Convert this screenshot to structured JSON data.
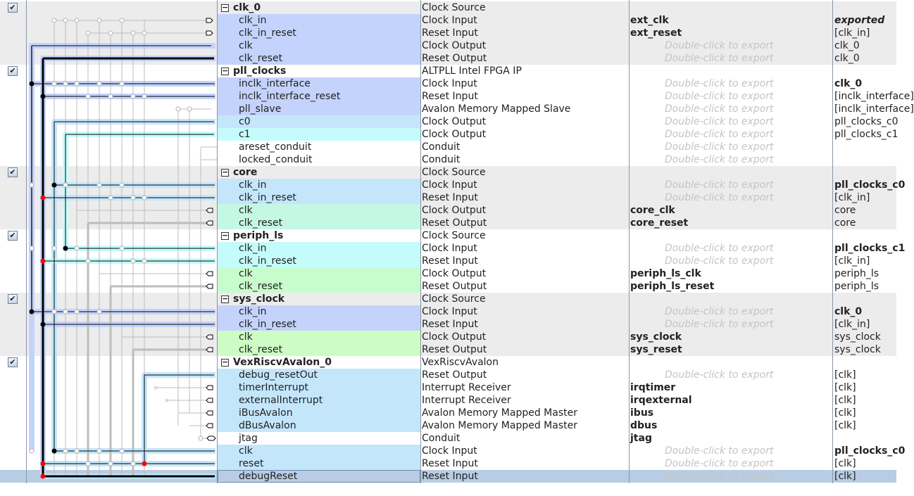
{
  "export_hint": "Double-click to export",
  "colors": {
    "blue": "#c4d3fc",
    "lightblue": "#c3e6fb",
    "cyan": "#c4fcfc",
    "mint": "#c4f8e4",
    "green": "#c8fccc",
    "lime": "#cdfcc4",
    "selected": "#b8cce4",
    "header_gray": "#ececec"
  },
  "rows": [
    {
      "name": "clk_0",
      "desc": "Clock Source",
      "header": true,
      "gray": true,
      "checked": true
    },
    {
      "name": "clk_in",
      "desc": "Clock Input",
      "export": "ext_clk",
      "export_bold": true,
      "clock": "exported",
      "clock_style": "bi",
      "bg": "blue",
      "gray": true
    },
    {
      "name": "clk_in_reset",
      "desc": "Reset Input",
      "export": "ext_reset",
      "export_bold": true,
      "clock": "[clk_in]",
      "bg": "blue",
      "gray": true
    },
    {
      "name": "clk",
      "desc": "Clock Output",
      "dbl": true,
      "clock": "clk_0",
      "bg": "blue",
      "gray": true
    },
    {
      "name": "clk_reset",
      "desc": "Reset Output",
      "dbl": true,
      "clock": "clk_0",
      "bg": "blue",
      "gray": true
    },
    {
      "name": "pll_clocks",
      "desc": "ALTPLL Intel FPGA IP",
      "header": true,
      "checked": true
    },
    {
      "name": "inclk_interface",
      "desc": "Clock Input",
      "dbl": true,
      "clock": "clk_0",
      "clock_style": "bold",
      "bg": "blue"
    },
    {
      "name": "inclk_interface_reset",
      "desc": "Reset Input",
      "dbl": true,
      "clock": "[inclk_interface]",
      "bg": "blue"
    },
    {
      "name": "pll_slave",
      "desc": "Avalon Memory Mapped Slave",
      "dbl": true,
      "clock": "[inclk_interface]",
      "bg": "blue"
    },
    {
      "name": "c0",
      "desc": "Clock Output",
      "dbl": true,
      "clock": "pll_clocks_c0",
      "bg": "lightblue"
    },
    {
      "name": "c1",
      "desc": "Clock Output",
      "dbl": true,
      "clock": "pll_clocks_c1",
      "bg": "cyan"
    },
    {
      "name": "areset_conduit",
      "desc": "Conduit",
      "dbl": true
    },
    {
      "name": "locked_conduit",
      "desc": "Conduit",
      "dbl": true
    },
    {
      "name": "core",
      "desc": "Clock Source",
      "header": true,
      "gray": true,
      "checked": true
    },
    {
      "name": "clk_in",
      "desc": "Clock Input",
      "dbl": true,
      "clock": "pll_clocks_c0",
      "clock_style": "bold",
      "bg": "lightblue",
      "gray": true
    },
    {
      "name": "clk_in_reset",
      "desc": "Reset Input",
      "dbl": true,
      "clock": "[clk_in]",
      "bg": "lightblue",
      "gray": true
    },
    {
      "name": "clk",
      "desc": "Clock Output",
      "export": "core_clk",
      "export_bold": true,
      "clock": "core",
      "bg": "mint",
      "gray": true
    },
    {
      "name": "clk_reset",
      "desc": "Reset Output",
      "export": "core_reset",
      "export_bold": true,
      "clock": "core",
      "bg": "mint",
      "gray": true
    },
    {
      "name": "periph_ls",
      "desc": "Clock Source",
      "header": true,
      "checked": true
    },
    {
      "name": "clk_in",
      "desc": "Clock Input",
      "dbl": true,
      "clock": "pll_clocks_c1",
      "clock_style": "bold",
      "bg": "cyan"
    },
    {
      "name": "clk_in_reset",
      "desc": "Reset Input",
      "dbl": true,
      "clock": "[clk_in]",
      "bg": "cyan"
    },
    {
      "name": "clk",
      "desc": "Clock Output",
      "export": "periph_ls_clk",
      "export_bold": true,
      "clock": "periph_ls",
      "bg": "green"
    },
    {
      "name": "clk_reset",
      "desc": "Reset Output",
      "export": "periph_ls_reset",
      "export_bold": true,
      "clock": "periph_ls",
      "bg": "green"
    },
    {
      "name": "sys_clock",
      "desc": "Clock Source",
      "header": true,
      "gray": true,
      "checked": true
    },
    {
      "name": "clk_in",
      "desc": "Clock Input",
      "dbl": true,
      "clock": "clk_0",
      "clock_style": "bold",
      "bg": "blue",
      "gray": true
    },
    {
      "name": "clk_in_reset",
      "desc": "Reset Input",
      "dbl": true,
      "clock": "[clk_in]",
      "bg": "blue",
      "gray": true
    },
    {
      "name": "clk",
      "desc": "Clock Output",
      "export": "sys_clock",
      "export_bold": true,
      "clock": "sys_clock",
      "bg": "lime",
      "gray": true
    },
    {
      "name": "clk_reset",
      "desc": "Reset Output",
      "export": "sys_reset",
      "export_bold": true,
      "clock": "sys_clock",
      "bg": "lime",
      "gray": true
    },
    {
      "name": "VexRiscvAvalon_0",
      "desc": "VexRiscvAvalon",
      "header": true,
      "checked": true
    },
    {
      "name": "debug_resetOut",
      "desc": "Reset Output",
      "dbl": true,
      "clock": "[clk]",
      "bg": "lightblue"
    },
    {
      "name": "timerInterrupt",
      "desc": "Interrupt Receiver",
      "export": "irqtimer",
      "export_bold": true,
      "clock": "[clk]",
      "bg": "lightblue"
    },
    {
      "name": "externalInterrupt",
      "desc": "Interrupt Receiver",
      "export": "irqexternal",
      "export_bold": true,
      "clock": "[clk]",
      "bg": "lightblue"
    },
    {
      "name": "iBusAvalon",
      "desc": "Avalon Memory Mapped Master",
      "export": "ibus",
      "export_bold": true,
      "clock": "[clk]",
      "bg": "lightblue"
    },
    {
      "name": "dBusAvalon",
      "desc": "Avalon Memory Mapped Master",
      "export": "dbus",
      "export_bold": true,
      "clock": "[clk]",
      "bg": "lightblue"
    },
    {
      "name": "jtag",
      "desc": "Conduit",
      "export": "jtag",
      "export_bold": true
    },
    {
      "name": "clk",
      "desc": "Clock Input",
      "dbl": true,
      "clock": "pll_clocks_c0",
      "clock_style": "bold",
      "bg": "lightblue"
    },
    {
      "name": "reset",
      "desc": "Reset Input",
      "dbl": true,
      "clock": "[clk]",
      "bg": "lightblue"
    },
    {
      "name": "debugReset",
      "desc": "Reset Input",
      "dbl": true,
      "clock": "[clk]",
      "bg": "lightblue",
      "selected": true
    }
  ]
}
